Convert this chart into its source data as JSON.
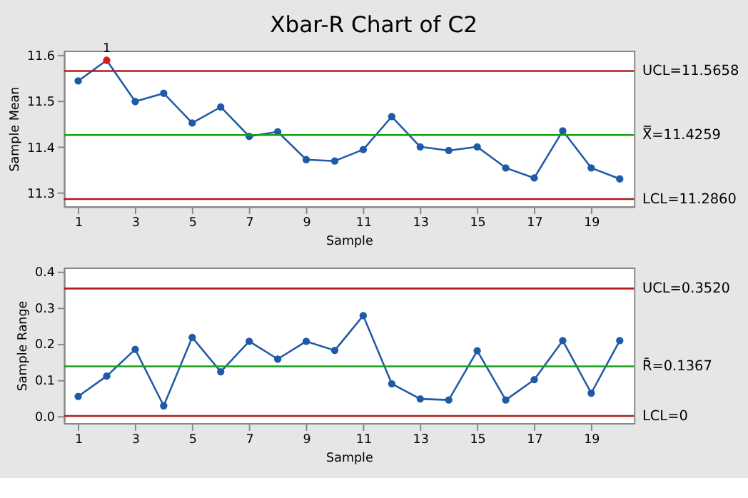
{
  "chart_data": [
    {
      "type": "line",
      "title": "Xbar-R Chart of C2",
      "xlabel": "Sample",
      "ylabel": "Sample Mean",
      "x": [
        1,
        2,
        3,
        4,
        5,
        6,
        7,
        8,
        9,
        10,
        11,
        12,
        13,
        14,
        15,
        16,
        17,
        18,
        19,
        20
      ],
      "series": [
        {
          "color": "#1f5aa6",
          "colors": [
            "#1f5aa6",
            "#d7191c",
            "#1f5aa6",
            "#1f5aa6",
            "#1f5aa6",
            "#1f5aa6",
            "#1f5aa6",
            "#1f5aa6",
            "#1f5aa6",
            "#1f5aa6",
            "#1f5aa6",
            "#1f5aa6",
            "#1f5aa6",
            "#1f5aa6",
            "#1f5aa6",
            "#1f5aa6",
            "#1f5aa6",
            "#1f5aa6",
            "#1f5aa6",
            "#1f5aa6"
          ],
          "values": [
            11.544,
            11.589,
            11.499,
            11.517,
            11.452,
            11.487,
            11.423,
            11.433,
            11.372,
            11.369,
            11.394,
            11.466,
            11.4,
            11.392,
            11.4,
            11.354,
            11.332,
            11.435,
            11.354,
            11.33
          ]
        }
      ],
      "xlim": [
        0.5,
        20.5
      ],
      "xticks": [
        1,
        3,
        5,
        7,
        9,
        11,
        13,
        15,
        17,
        19
      ],
      "ylim": [
        11.27,
        11.61
      ],
      "yticks": [
        11.3,
        11.4,
        11.5,
        11.6
      ],
      "ref_lines": [
        {
          "axis": "y",
          "value": 11.5658,
          "label": "UCL=11.5658",
          "color": "#b01c1c"
        },
        {
          "axis": "y",
          "value": 11.4259,
          "label": "X̿=11.4259",
          "color": "#18a018"
        },
        {
          "axis": "y",
          "value": 11.286,
          "label": "LCL=11.2860",
          "color": "#b01c1c"
        }
      ],
      "annotations": [
        {
          "text": "1",
          "x": 2,
          "y": 11.589
        }
      ],
      "marker": "circle",
      "line_style": "solid",
      "grid": false
    },
    {
      "type": "line",
      "xlabel": "Sample",
      "ylabel": "Sample Range",
      "x": [
        1,
        2,
        3,
        4,
        5,
        6,
        7,
        8,
        9,
        10,
        11,
        12,
        13,
        14,
        15,
        16,
        17,
        18,
        19,
        20
      ],
      "series": [
        {
          "color": "#1f5aa6",
          "values": [
            0.054,
            0.11,
            0.184,
            0.028,
            0.217,
            0.122,
            0.206,
            0.157,
            0.206,
            0.181,
            0.277,
            0.089,
            0.047,
            0.044,
            0.18,
            0.044,
            0.1,
            0.208,
            0.063,
            0.208
          ]
        }
      ],
      "xlim": [
        0.5,
        20.5
      ],
      "xticks": [
        1,
        3,
        5,
        7,
        9,
        11,
        13,
        15,
        17,
        19
      ],
      "ylim": [
        -0.02,
        0.41
      ],
      "yticks": [
        {
          "value": 0,
          "label": "0.0"
        },
        0.1,
        0.2,
        0.3,
        0.4
      ],
      "ref_lines": [
        {
          "axis": "y",
          "value": 0.352,
          "label": "UCL=0.3520",
          "color": "#b01c1c"
        },
        {
          "axis": "y",
          "value": 0.1367,
          "label": "R̄=0.1367",
          "color": "#18a018"
        },
        {
          "axis": "y",
          "value": 0,
          "label": "LCL=0",
          "color": "#b01c1c"
        }
      ],
      "marker": "circle",
      "line_style": "solid",
      "grid": false
    }
  ]
}
